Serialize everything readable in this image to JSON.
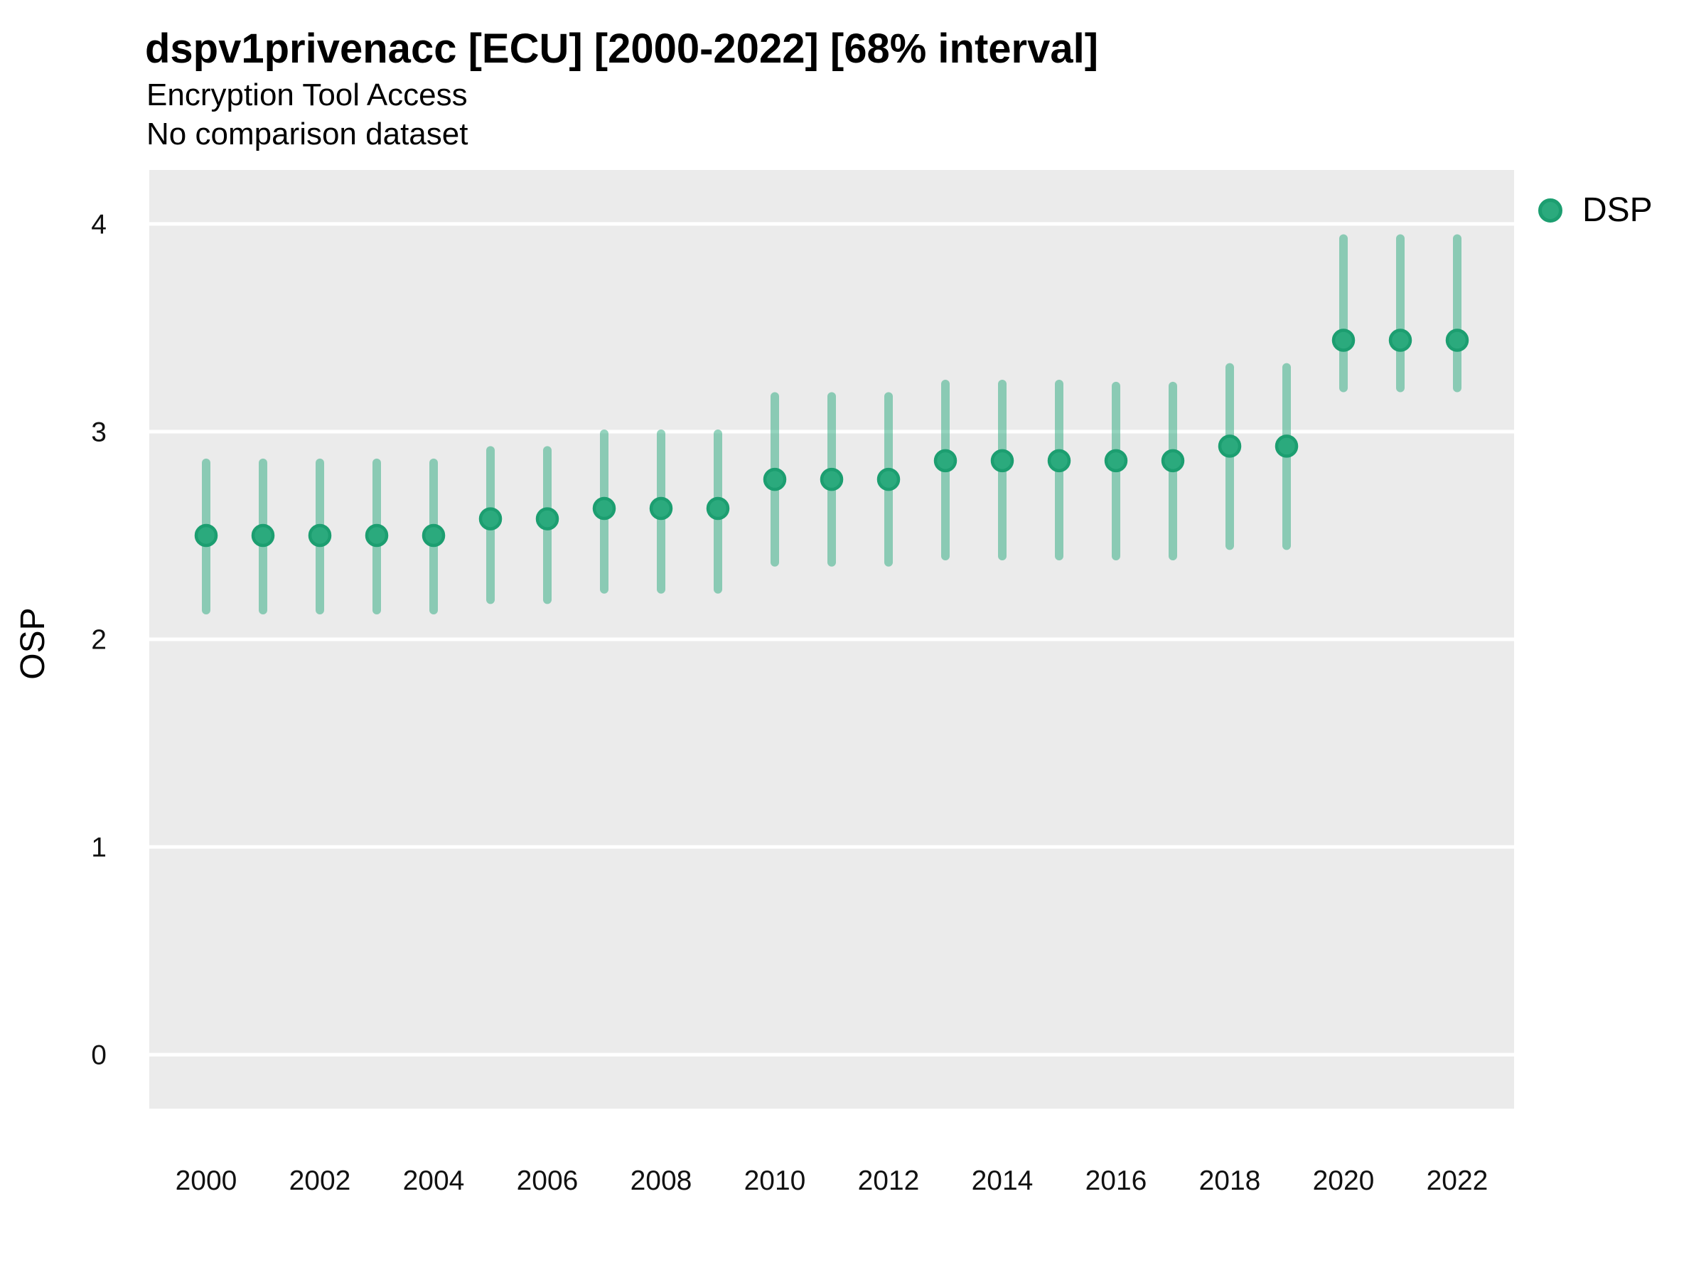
{
  "header": {
    "title": "dspv1privenacc [ECU] [2000-2022] [68% interval]",
    "subtitle": "Encryption Tool Access",
    "note": "No comparison dataset"
  },
  "axes": {
    "y_label": "OSP"
  },
  "legend": {
    "label": "DSP"
  },
  "chart_data": {
    "type": "pointrange",
    "title": "dspv1privenacc [ECU] [2000-2022] [68% interval]",
    "subtitle": "Encryption Tool Access",
    "note": "No comparison dataset",
    "series_name": "DSP",
    "xlabel": "",
    "ylabel": "OSP",
    "interval": "68%",
    "grid": "horizontal-major-only",
    "legend_position": "right-top",
    "ylim": [
      -0.26,
      4.26
    ],
    "xlim": [
      1999.0,
      2023.0
    ],
    "y_ticks": [
      0,
      1,
      2,
      3,
      4
    ],
    "x_ticks": [
      2000,
      2002,
      2004,
      2006,
      2008,
      2010,
      2012,
      2014,
      2016,
      2018,
      2020,
      2022
    ],
    "series": [
      {
        "year": 2000,
        "value": 2.5,
        "lower": 2.12,
        "upper": 2.87
      },
      {
        "year": 2001,
        "value": 2.5,
        "lower": 2.12,
        "upper": 2.87
      },
      {
        "year": 2002,
        "value": 2.5,
        "lower": 2.12,
        "upper": 2.87
      },
      {
        "year": 2003,
        "value": 2.5,
        "lower": 2.12,
        "upper": 2.87
      },
      {
        "year": 2004,
        "value": 2.5,
        "lower": 2.12,
        "upper": 2.87
      },
      {
        "year": 2005,
        "value": 2.58,
        "lower": 2.17,
        "upper": 2.93
      },
      {
        "year": 2006,
        "value": 2.58,
        "lower": 2.17,
        "upper": 2.93
      },
      {
        "year": 2007,
        "value": 2.63,
        "lower": 2.22,
        "upper": 3.01
      },
      {
        "year": 2008,
        "value": 2.63,
        "lower": 2.22,
        "upper": 3.01
      },
      {
        "year": 2009,
        "value": 2.63,
        "lower": 2.22,
        "upper": 3.01
      },
      {
        "year": 2010,
        "value": 2.77,
        "lower": 2.35,
        "upper": 3.19
      },
      {
        "year": 2011,
        "value": 2.77,
        "lower": 2.35,
        "upper": 3.19
      },
      {
        "year": 2012,
        "value": 2.77,
        "lower": 2.35,
        "upper": 3.19
      },
      {
        "year": 2013,
        "value": 2.86,
        "lower": 2.38,
        "upper": 3.25
      },
      {
        "year": 2014,
        "value": 2.86,
        "lower": 2.38,
        "upper": 3.25
      },
      {
        "year": 2015,
        "value": 2.86,
        "lower": 2.38,
        "upper": 3.25
      },
      {
        "year": 2016,
        "value": 2.86,
        "lower": 2.38,
        "upper": 3.24
      },
      {
        "year": 2017,
        "value": 2.86,
        "lower": 2.38,
        "upper": 3.24
      },
      {
        "year": 2018,
        "value": 2.93,
        "lower": 2.43,
        "upper": 3.33
      },
      {
        "year": 2019,
        "value": 2.93,
        "lower": 2.43,
        "upper": 3.33
      },
      {
        "year": 2020,
        "value": 3.44,
        "lower": 3.19,
        "upper": 3.95
      },
      {
        "year": 2021,
        "value": 3.44,
        "lower": 3.19,
        "upper": 3.95
      },
      {
        "year": 2022,
        "value": 3.44,
        "lower": 3.19,
        "upper": 3.95
      }
    ],
    "colors": {
      "point_fill": "#2BAA7D",
      "point_ring": "#1C9E70",
      "interval_bar": "rgba(42,169,126,0.5)",
      "panel_bg": "#EBEBEB",
      "gridline": "#FFFFFF",
      "tick_text": "#111111",
      "title_text": "#000000"
    }
  }
}
